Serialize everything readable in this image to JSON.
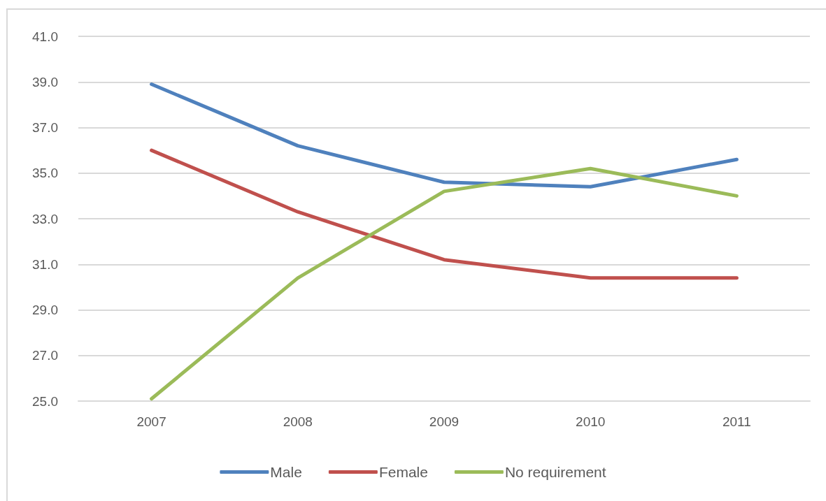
{
  "chart_data": {
    "type": "line",
    "categories": [
      "2007",
      "2008",
      "2009",
      "2010",
      "2011"
    ],
    "series": [
      {
        "name": "Male",
        "color": "#4f81bd",
        "values": [
          38.9,
          36.2,
          34.6,
          34.4,
          35.6
        ]
      },
      {
        "name": "Female",
        "color": "#c0504d",
        "values": [
          36.0,
          33.3,
          31.2,
          30.4,
          30.4
        ]
      },
      {
        "name": "No requirement",
        "color": "#9bbb59",
        "values": [
          25.1,
          30.4,
          34.2,
          35.2,
          34.0
        ]
      }
    ],
    "ylim": [
      25,
      41
    ],
    "yticks": [
      {
        "value": 25,
        "label": "25.0"
      },
      {
        "value": 27,
        "label": "27.0"
      },
      {
        "value": 29,
        "label": "29.0"
      },
      {
        "value": 31,
        "label": "31.0"
      },
      {
        "value": 33,
        "label": "33.0"
      },
      {
        "value": 35,
        "label": "35.0"
      },
      {
        "value": 37,
        "label": "37.0"
      },
      {
        "value": 39,
        "label": "39.0"
      },
      {
        "value": 41,
        "label": "41.0"
      }
    ],
    "grid": "y",
    "legend": "bottom",
    "marker": "none",
    "line_style": "solid"
  }
}
